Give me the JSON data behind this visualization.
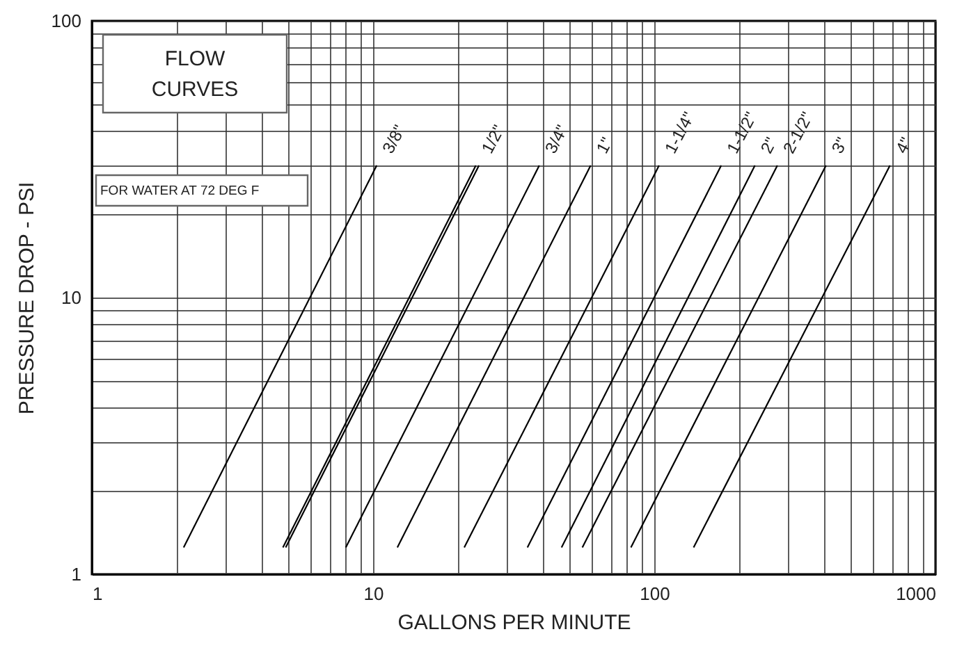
{
  "chart_data": {
    "type": "line",
    "title": "FLOW CURVES",
    "xlabel": "GALLONS PER MINUTE",
    "ylabel": "PRESSURE DROP - PSI",
    "annotations": [
      "FOR WATER AT 72 DEG F"
    ],
    "log": "xy",
    "grid": true,
    "xlim": [
      1,
      1000
    ],
    "ylim": [
      1,
      100
    ],
    "xticks": [
      1,
      {
        "value": 2,
        "label": null
      },
      {
        "value": 3,
        "label": null
      },
      {
        "value": 4,
        "label": null
      },
      {
        "value": 5,
        "label": null
      },
      {
        "value": 6,
        "label": null
      },
      {
        "value": 7,
        "label": null
      },
      {
        "value": 8,
        "label": null
      },
      {
        "value": 9,
        "label": null
      },
      10,
      {
        "value": 20,
        "label": null
      },
      {
        "value": 30,
        "label": null
      },
      {
        "value": 40,
        "label": null
      },
      {
        "value": 50,
        "label": null
      },
      {
        "value": 60,
        "label": null
      },
      {
        "value": 70,
        "label": null
      },
      {
        "value": 80,
        "label": null
      },
      {
        "value": 90,
        "label": null
      },
      100,
      {
        "value": 200,
        "label": null
      },
      {
        "value": 300,
        "label": null
      },
      {
        "value": 400,
        "label": null
      },
      {
        "value": 500,
        "label": null
      },
      {
        "value": 600,
        "label": null
      },
      {
        "value": 700,
        "label": null
      },
      {
        "value": 800,
        "label": null
      },
      {
        "value": 900,
        "label": null
      },
      1000
    ],
    "yticks": [
      1,
      {
        "value": 2,
        "label": null
      },
      {
        "value": 3,
        "label": null
      },
      {
        "value": 4,
        "label": null
      },
      {
        "value": 5,
        "label": null
      },
      {
        "value": 6,
        "label": null
      },
      {
        "value": 7,
        "label": null
      },
      {
        "value": 8,
        "label": null
      },
      {
        "value": 9,
        "label": null
      },
      10,
      {
        "value": 20,
        "label": null
      },
      {
        "value": 30,
        "label": null
      },
      {
        "value": 40,
        "label": null
      },
      {
        "value": 50,
        "label": null
      },
      {
        "value": 60,
        "label": null
      },
      {
        "value": 70,
        "label": null
      },
      {
        "value": 80,
        "label": null
      },
      {
        "value": 90,
        "label": null
      },
      100
    ],
    "series": [
      {
        "name": "3/8\"",
        "color": "#000000",
        "x": [
          2.12,
          10.3
        ],
        "values": [
          1.25,
          30
        ]
      },
      {
        "name": "1/2\"",
        "color": "#000000",
        "x": [
          4.78,
          23.2
        ],
        "values": [
          1.25,
          30
        ]
      },
      {
        "color": "#000000",
        "x": [
          4.89,
          23.8
        ],
        "values": [
          1.25,
          30
        ]
      },
      {
        "name": "3/4\"",
        "color": "#000000",
        "x": [
          8,
          39
        ],
        "values": [
          1.25,
          30
        ]
      },
      {
        "name": "1\"",
        "color": "#000000",
        "x": [
          12.2,
          59.4
        ],
        "values": [
          1.25,
          30
        ]
      },
      {
        "name": "1-1/4\"",
        "color": "#000000",
        "x": [
          21.1,
          104
        ],
        "values": [
          1.25,
          30
        ]
      },
      {
        "name": "1-1/2\"",
        "color": "#000000",
        "x": [
          35.4,
          173
        ],
        "values": [
          1.25,
          30
        ]
      },
      {
        "name": "2\"",
        "color": "#000000",
        "x": [
          46.8,
          228
        ],
        "values": [
          1.25,
          30
        ]
      },
      {
        "name": "2-1/2\"",
        "color": "#000000",
        "x": [
          55.5,
          274
        ],
        "values": [
          1.25,
          30
        ]
      },
      {
        "name": "3\"",
        "color": "#000000",
        "x": [
          82.6,
          408
        ],
        "values": [
          1.25,
          30
        ]
      },
      {
        "name": "4\"",
        "color": "#000000",
        "x": [
          138,
          689
        ],
        "values": [
          1.25,
          30
        ]
      }
    ]
  }
}
